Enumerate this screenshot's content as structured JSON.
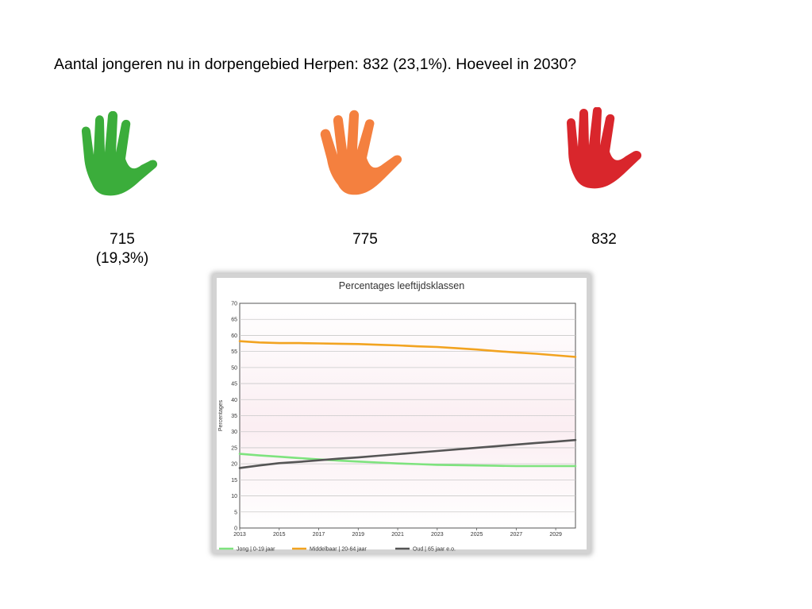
{
  "heading": "Aantal jongeren nu in dorpengebied Herpen: 832 (23,1%). Hoeveel in 2030?",
  "options": [
    {
      "value": "715",
      "percent": "(19,3%)",
      "color": "#3bad3b"
    },
    {
      "value": "775",
      "percent": "",
      "color": "#f4803f"
    },
    {
      "value": "832",
      "percent": "",
      "color": "#d9262c"
    }
  ],
  "chart_data": {
    "type": "line",
    "title": "Percentages leeftijdsklassen",
    "xlabel": "",
    "ylabel": "Percentages",
    "xlim": [
      2013,
      2030
    ],
    "ylim": [
      0,
      70
    ],
    "xticks": [
      "2013",
      "2015",
      "2017",
      "2019",
      "2021",
      "2023",
      "2025",
      "2027",
      "2029"
    ],
    "yticks": [
      "0",
      "5",
      "10",
      "15",
      "20",
      "25",
      "30",
      "35",
      "40",
      "45",
      "50",
      "55",
      "60",
      "65",
      "70"
    ],
    "grid": true,
    "legend": "bottom",
    "x": [
      2013,
      2014,
      2015,
      2016,
      2017,
      2018,
      2019,
      2020,
      2021,
      2022,
      2023,
      2024,
      2025,
      2026,
      2027,
      2028,
      2029,
      2030
    ],
    "series": [
      {
        "name": "Jong | 0-19 jaar",
        "color": "#7ee37e",
        "values": [
          23.1,
          22.6,
          22.2,
          21.8,
          21.4,
          21.0,
          20.7,
          20.4,
          20.1,
          19.9,
          19.7,
          19.6,
          19.5,
          19.4,
          19.3,
          19.3,
          19.3,
          19.3
        ]
      },
      {
        "name": "Middelbaar | 20-64 jaar",
        "color": "#f2a320",
        "values": [
          58.2,
          57.8,
          57.6,
          57.6,
          57.5,
          57.4,
          57.3,
          57.1,
          56.9,
          56.6,
          56.4,
          56.0,
          55.6,
          55.1,
          54.7,
          54.3,
          53.8,
          53.3
        ]
      },
      {
        "name": "Oud | 65 jaar e.o.",
        "color": "#555555",
        "values": [
          18.7,
          19.5,
          20.2,
          20.6,
          21.1,
          21.6,
          22.0,
          22.5,
          23.0,
          23.5,
          24.0,
          24.5,
          25.0,
          25.5,
          26.0,
          26.5,
          26.9,
          27.4
        ]
      }
    ]
  }
}
